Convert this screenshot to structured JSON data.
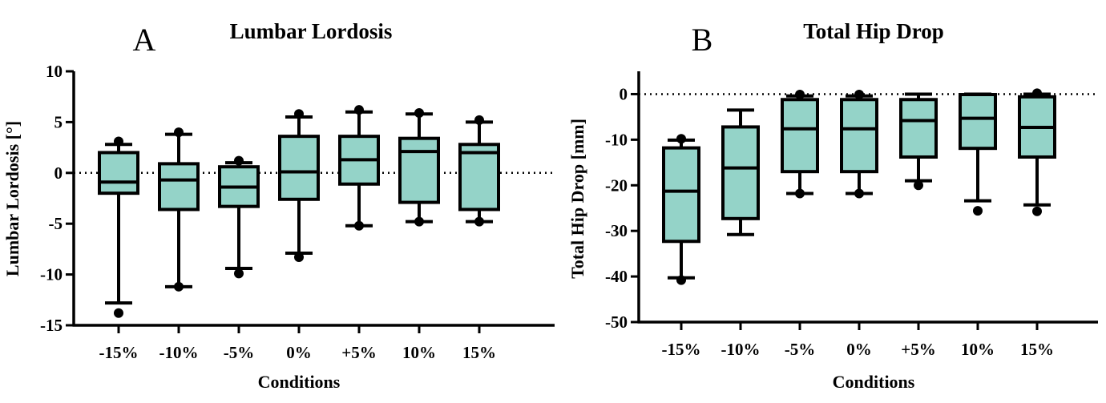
{
  "chart_data": [
    {
      "type": "box",
      "panel_label": "A",
      "title": "Lumbar Lordosis",
      "xlabel": "Conditions",
      "ylabel": "Lumbar Lordosis [°]",
      "ylim": [
        -15,
        10
      ],
      "yticks": [
        10,
        5,
        0,
        -5,
        -10,
        -15
      ],
      "reference_line": 0,
      "categories": [
        "-15%",
        "-10%",
        "-5%",
        "0%",
        "+5%",
        "10%",
        "15%"
      ],
      "boxes": [
        {
          "whisker_low": -12.8,
          "q1": -2.0,
          "median": -0.9,
          "q3": 2.0,
          "whisker_high": 2.8,
          "outliers": [
            -13.8,
            3.1
          ]
        },
        {
          "whisker_low": -11.2,
          "q1": -3.6,
          "median": -0.7,
          "q3": 0.9,
          "whisker_high": 3.8,
          "outliers": [
            -11.2,
            4.0
          ]
        },
        {
          "whisker_low": -9.4,
          "q1": -3.3,
          "median": -1.4,
          "q3": 0.6,
          "whisker_high": 1.0,
          "outliers": [
            -9.9,
            1.2
          ]
        },
        {
          "whisker_low": -7.9,
          "q1": -2.6,
          "median": 0.1,
          "q3": 3.6,
          "whisker_high": 5.5,
          "outliers": [
            -8.3,
            5.8
          ]
        },
        {
          "whisker_low": -5.2,
          "q1": -1.1,
          "median": 1.3,
          "q3": 3.6,
          "whisker_high": 6.0,
          "outliers": [
            -5.2,
            6.2
          ]
        },
        {
          "whisker_low": -4.8,
          "q1": -2.9,
          "median": 2.1,
          "q3": 3.4,
          "whisker_high": 5.8,
          "outliers": [
            -4.8,
            5.9
          ]
        },
        {
          "whisker_low": -4.8,
          "q1": -3.6,
          "median": 2.0,
          "q3": 2.8,
          "whisker_high": 5.0,
          "outliers": [
            -4.8,
            5.2
          ]
        }
      ]
    },
    {
      "type": "box",
      "panel_label": "B",
      "title": "Total Hip Drop",
      "xlabel": "Conditions",
      "ylabel": "Total Hip Drop [mm]",
      "ylim": [
        -50,
        5
      ],
      "yticks": [
        0,
        -10,
        -20,
        -30,
        -40,
        -50
      ],
      "reference_line": 0,
      "categories": [
        "-15%",
        "-10%",
        "-5%",
        "0%",
        "+5%",
        "10%",
        "15%"
      ],
      "boxes": [
        {
          "whisker_low": -40.3,
          "q1": -32.3,
          "median": -21.3,
          "q3": -11.8,
          "whisker_high": -10.1,
          "outliers": [
            -40.8,
            -9.8
          ]
        },
        {
          "whisker_low": -30.8,
          "q1": -27.3,
          "median": -16.2,
          "q3": -7.2,
          "whisker_high": -3.5,
          "outliers": []
        },
        {
          "whisker_low": -21.8,
          "q1": -17.0,
          "median": -7.6,
          "q3": -1.2,
          "whisker_high": -0.4,
          "outliers": [
            -21.8,
            -0.1
          ]
        },
        {
          "whisker_low": -21.8,
          "q1": -17.0,
          "median": -7.6,
          "q3": -1.2,
          "whisker_high": -0.4,
          "outliers": [
            -21.8,
            -0.1
          ]
        },
        {
          "whisker_low": -19.0,
          "q1": -13.8,
          "median": -5.8,
          "q3": -1.2,
          "whisker_high": 0.0,
          "outliers": [
            -20.0
          ]
        },
        {
          "whisker_low": -23.4,
          "q1": -11.9,
          "median": -5.3,
          "q3": -0.1,
          "whisker_high": 0.0,
          "outliers": [
            -25.6
          ]
        },
        {
          "whisker_low": -24.3,
          "q1": -13.8,
          "median": -7.3,
          "q3": -0.6,
          "whisker_high": 0.0,
          "outliers": [
            -25.7,
            0.2
          ]
        }
      ]
    }
  ],
  "style": {
    "box_fill": "#94d3c8",
    "stroke": "#000000"
  }
}
